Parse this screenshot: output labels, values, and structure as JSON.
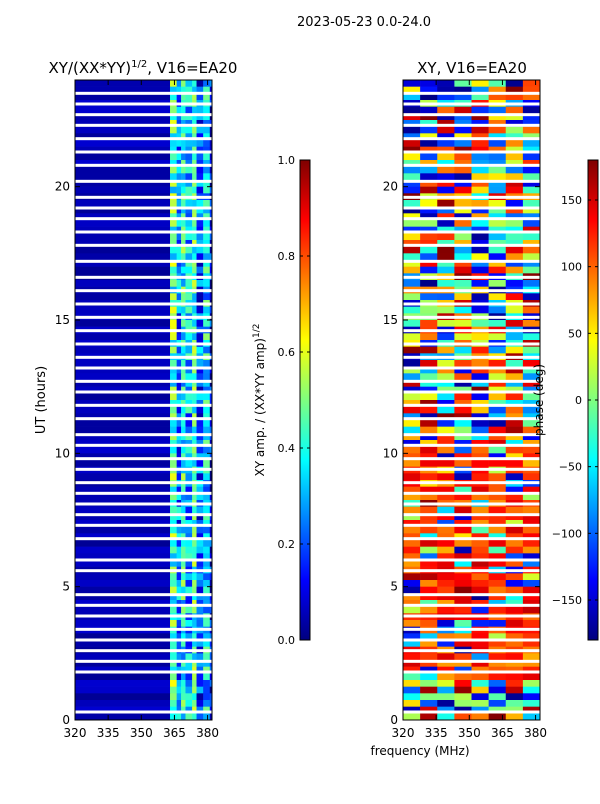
{
  "suptitle": "2023-05-23 0.0-24.0",
  "xlabel_shared": "frequency (MHz)",
  "colors": {
    "jet": [
      "#00007f",
      "#0000ff",
      "#007fff",
      "#00ffff",
      "#7fff7f",
      "#ffff00",
      "#ff7f00",
      "#ff0000",
      "#7f0000"
    ],
    "gap": "#ffffff",
    "axis": "#000000"
  },
  "chart_data": [
    {
      "type": "heatmap",
      "title_main": "XY/(XX*YY)",
      "title_exp": "1/2",
      "title_suffix": ", V16=EA20",
      "ylabel": "UT (hours)",
      "xlim": [
        320,
        382
      ],
      "ylim": [
        0,
        24
      ],
      "xticks": [
        320,
        335,
        350,
        365,
        380
      ],
      "yticks": [
        0,
        5,
        10,
        15,
        20
      ],
      "colorbar": {
        "label_main": "XY amp. / (XX*YY amp)",
        "label_exp": "1/2",
        "range": [
          0.0,
          1.0
        ],
        "ticks": [
          "0.0",
          "0.2",
          "0.4",
          "0.6",
          "0.8",
          "1.0"
        ]
      },
      "bands": [
        {
          "f0": 320,
          "f1": 363,
          "level": 0.05
        },
        {
          "f0": 363,
          "f1": 366,
          "level": 0.45
        },
        {
          "f0": 366,
          "f1": 368,
          "level": 0.25
        },
        {
          "f0": 368,
          "f1": 370,
          "level": 0.4
        },
        {
          "f0": 370,
          "f1": 373,
          "level": 0.3
        },
        {
          "f0": 373,
          "f1": 375,
          "level": 0.45
        },
        {
          "f0": 375,
          "f1": 378,
          "level": 0.2
        },
        {
          "f0": 378,
          "f1": 381,
          "level": 0.35
        },
        {
          "f0": 381,
          "f1": 382,
          "level": 0.1
        }
      ]
    },
    {
      "type": "heatmap",
      "title_main": "XY, V16=EA20",
      "ylabel": "",
      "xlim": [
        320,
        382
      ],
      "ylim": [
        0,
        24
      ],
      "xticks": [
        320,
        335,
        350,
        365,
        380
      ],
      "yticks": [
        0,
        5,
        10,
        15,
        20
      ],
      "colorbar": {
        "label_main": "phase (deg)",
        "range": [
          -180,
          180
        ],
        "ticks": [
          "−150",
          "−100",
          "−50",
          "0",
          "50",
          "100",
          "150"
        ]
      },
      "bands": []
    }
  ],
  "gaps_hours": [
    0.3,
    1.8,
    2.2,
    2.6,
    3.0,
    3.4,
    3.9,
    4.3,
    4.7,
    5.6,
    6.0,
    6.8,
    7.3,
    7.7,
    8.1,
    8.5,
    8.9,
    9.4,
    9.8,
    10.3,
    10.7,
    11.3,
    11.8,
    12.3,
    12.7,
    13.2,
    13.6,
    14.1,
    14.6,
    15.1,
    15.6,
    16.1,
    16.6,
    17.2,
    17.8,
    18.3,
    18.8,
    19.2,
    19.6,
    20.2,
    20.8,
    21.3,
    21.8,
    22.3,
    22.7,
    23.1,
    23.5
  ]
}
